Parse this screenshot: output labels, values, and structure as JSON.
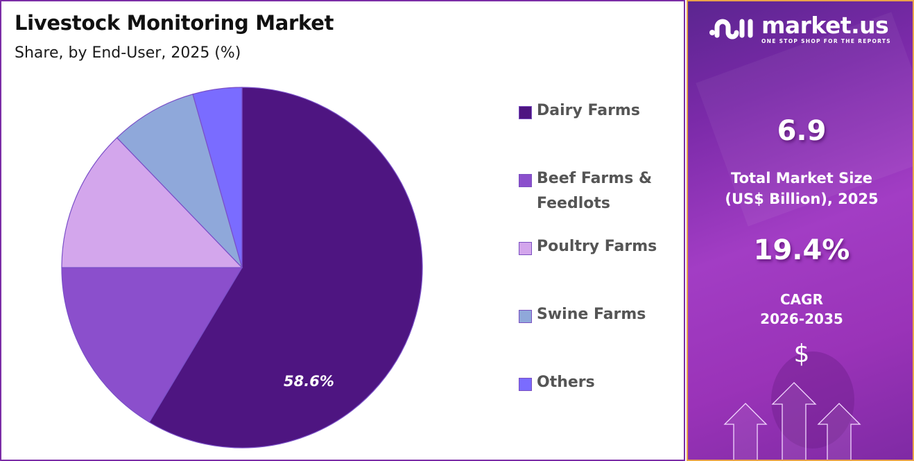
{
  "header": {
    "title": "Livestock Monitoring Market",
    "subtitle": "Share, by End-User, 2025 (%)"
  },
  "legend": {
    "items": [
      {
        "label": "Dairy Farms",
        "color": "#4e1581"
      },
      {
        "label": "Beef Farms & Feedlots",
        "line1": "Beef Farms &",
        "line2": "Feedlots",
        "color": "#8b4fcc"
      },
      {
        "label": "Poultry Farms",
        "color": "#d3a6ec"
      },
      {
        "label": "Swine Farms",
        "color": "#8fa8da"
      },
      {
        "label": "Others",
        "color": "#7a6cff"
      }
    ]
  },
  "pie_label": "58.6%",
  "sidebar": {
    "brand": "market.us",
    "tagline": "ONE STOP SHOP FOR THE REPORTS",
    "market_size_value": "6.9",
    "market_size_label_line1": "Total Market Size",
    "market_size_label_line2": "(US$ Billion), 2025",
    "cagr_value": "19.4%",
    "cagr_label_line1": "CAGR",
    "cagr_label_line2": "2026-2035",
    "dollar_symbol": "$",
    "border_color": "#e9a24a"
  },
  "chart_data": {
    "type": "pie",
    "title": "Livestock Monitoring Market",
    "subtitle": "Share, by End-User, 2025 (%)",
    "categories": [
      "Dairy Farms",
      "Beef Farms & Feedlots",
      "Poultry Farms",
      "Swine Farms",
      "Others"
    ],
    "values": [
      58.6,
      16.4,
      12.8,
      7.8,
      4.4
    ],
    "colors": [
      "#4e1581",
      "#8b4fcc",
      "#d3a6ec",
      "#8fa8da",
      "#7a6cff"
    ],
    "data_labels": {
      "Dairy Farms": "58.6%"
    },
    "start_angle": "12 o'clock, clockwise",
    "legend_position": "right"
  }
}
